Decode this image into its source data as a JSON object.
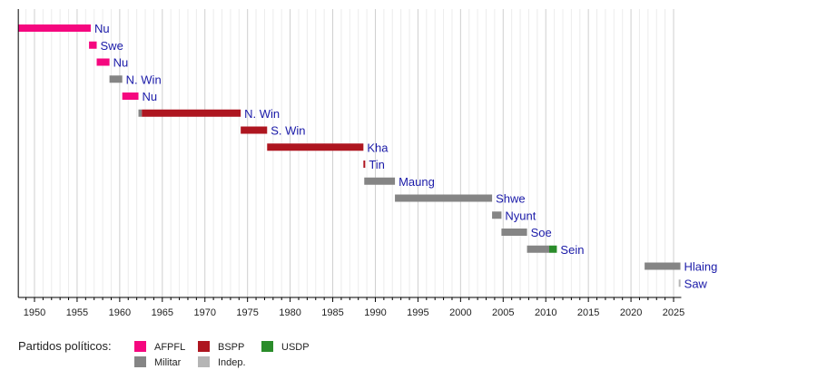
{
  "chart_data": {
    "type": "timeline",
    "xlim": [
      1948.1,
      2025.9
    ],
    "grid": true,
    "x_ticks": [
      1950,
      1955,
      1960,
      1965,
      1970,
      1975,
      1980,
      1985,
      1990,
      1995,
      2000,
      2005,
      2010,
      2015,
      2020,
      2025
    ],
    "colors": {
      "AFPFL": "#F5077F",
      "BSPP": "#AE1620",
      "USDP": "#2A8C2A",
      "Militar": "#858585",
      "Indep.": "#B5B5B5"
    },
    "rows": [
      {
        "label": "Nu",
        "segments": [
          {
            "start": 1948.1,
            "end": 1956.6,
            "party": "AFPFL"
          }
        ]
      },
      {
        "label": "Swe",
        "segments": [
          {
            "start": 1956.4,
            "end": 1957.3,
            "party": "AFPFL"
          }
        ]
      },
      {
        "label": "Nu",
        "segments": [
          {
            "start": 1957.3,
            "end": 1958.8,
            "party": "AFPFL"
          }
        ]
      },
      {
        "label": "N. Win",
        "segments": [
          {
            "start": 1958.8,
            "end": 1960.3,
            "party": "Militar"
          }
        ]
      },
      {
        "label": "Nu",
        "segments": [
          {
            "start": 1960.3,
            "end": 1962.2,
            "party": "AFPFL"
          }
        ]
      },
      {
        "label": "N. Win",
        "segments": [
          {
            "start": 1962.2,
            "end": 1962.6,
            "party": "Militar"
          },
          {
            "start": 1962.6,
            "end": 1974.2,
            "party": "BSPP"
          }
        ]
      },
      {
        "label": "S. Win",
        "segments": [
          {
            "start": 1974.2,
            "end": 1977.3,
            "party": "BSPP"
          }
        ]
      },
      {
        "label": "Kha",
        "segments": [
          {
            "start": 1977.3,
            "end": 1988.6,
            "party": "BSPP"
          }
        ]
      },
      {
        "label": "Tin",
        "segments": [
          {
            "start": 1988.6,
            "end": 1988.75,
            "party": "BSPP"
          }
        ]
      },
      {
        "label": "Maung",
        "segments": [
          {
            "start": 1988.7,
            "end": 1992.3,
            "party": "Militar"
          }
        ]
      },
      {
        "label": "Shwe",
        "segments": [
          {
            "start": 1992.3,
            "end": 2003.7,
            "party": "Militar"
          }
        ]
      },
      {
        "label": "Nyunt",
        "segments": [
          {
            "start": 2003.7,
            "end": 2004.8,
            "party": "Militar"
          }
        ]
      },
      {
        "label": "Soe",
        "segments": [
          {
            "start": 2004.8,
            "end": 2007.8,
            "party": "Militar"
          }
        ]
      },
      {
        "label": "Sein",
        "segments": [
          {
            "start": 2007.8,
            "end": 2010.4,
            "party": "Militar"
          },
          {
            "start": 2010.4,
            "end": 2011.3,
            "party": "USDP"
          }
        ]
      },
      {
        "label": "Hlaing",
        "segments": [
          {
            "start": 2021.6,
            "end": 2025.8,
            "party": "Militar"
          }
        ]
      },
      {
        "label": "Saw",
        "segments": [
          {
            "start": 2025.6,
            "end": 2025.8,
            "party": "Indep."
          }
        ]
      }
    ],
    "legend": {
      "title": "Partidos políticos:",
      "items": [
        "AFPFL",
        "BSPP",
        "USDP",
        "Militar",
        "Indep."
      ]
    }
  }
}
